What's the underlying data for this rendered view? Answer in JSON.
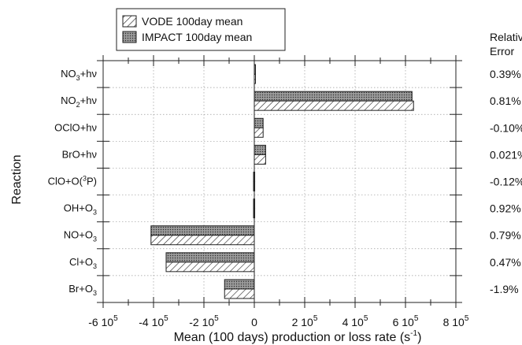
{
  "chart_data": {
    "type": "bar",
    "orientation": "horizontal",
    "xlabel": "Mean (100 days) production or loss rate (s",
    "xlabel_sup": "-1",
    "xlabel_close": ")",
    "ylabel": "Reaction",
    "error_header": [
      "Relative",
      "Error"
    ],
    "xlim": [
      -600000,
      800000
    ],
    "x_ticks": [
      {
        "value": -600000,
        "label": "-6 10",
        "sup": "5"
      },
      {
        "value": -400000,
        "label": "-4 10",
        "sup": "5"
      },
      {
        "value": -200000,
        "label": "-2 10",
        "sup": "5"
      },
      {
        "value": 0,
        "label": "0",
        "sup": ""
      },
      {
        "value": 200000,
        "label": "2 10",
        "sup": "5"
      },
      {
        "value": 400000,
        "label": "4 10",
        "sup": "5"
      },
      {
        "value": 600000,
        "label": "6 10",
        "sup": "5"
      },
      {
        "value": 800000,
        "label": "8 10",
        "sup": "5"
      }
    ],
    "categories": [
      {
        "parts": [
          [
            "NO",
            ""
          ],
          [
            "3",
            "sub"
          ],
          [
            "+hν",
            ""
          ]
        ]
      },
      {
        "parts": [
          [
            "NO",
            ""
          ],
          [
            "2",
            "sub"
          ],
          [
            "+hν",
            ""
          ]
        ]
      },
      {
        "parts": [
          [
            "OClO+hν",
            ""
          ]
        ]
      },
      {
        "parts": [
          [
            "BrO+hν",
            ""
          ]
        ]
      },
      {
        "parts": [
          [
            "ClO+O(",
            ""
          ],
          [
            "3",
            "sup"
          ],
          [
            "P)",
            ""
          ]
        ]
      },
      {
        "parts": [
          [
            "OH+O",
            ""
          ],
          [
            "3",
            "sub"
          ]
        ]
      },
      {
        "parts": [
          [
            "NO+O",
            ""
          ],
          [
            "3",
            "sub"
          ]
        ]
      },
      {
        "parts": [
          [
            "Cl+O",
            ""
          ],
          [
            "3",
            "sub"
          ]
        ]
      },
      {
        "parts": [
          [
            "Br+O",
            ""
          ],
          [
            "3",
            "sub"
          ]
        ]
      }
    ],
    "relative_error": [
      "0.39%",
      "0.81%",
      "-0.10%",
      "0.021%",
      "-0.12%",
      "0.92%",
      "0.79%",
      "0.47%",
      "-1.9%"
    ],
    "series": [
      {
        "name": "VODE 100day mean",
        "pattern": "hatch",
        "values": [
          4000,
          632000,
          35000,
          45000,
          -3000,
          -3000,
          -410000,
          -350000,
          -118000
        ]
      },
      {
        "name": "IMPACT 100day mean",
        "pattern": "stipple",
        "values": [
          4000,
          626000,
          35000,
          45000,
          -3000,
          -3000,
          -410000,
          -350000,
          -118000
        ]
      }
    ],
    "legend_position": "top-left",
    "grid": "dotted gridlines"
  }
}
